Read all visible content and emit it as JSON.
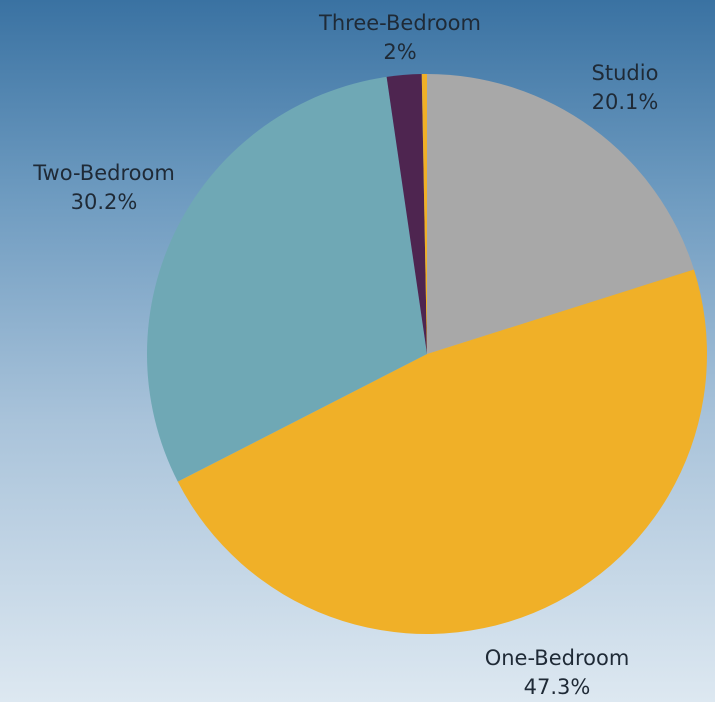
{
  "chart_data": {
    "type": "pie",
    "title": "",
    "slices": [
      {
        "label": "Studio",
        "value_label": "20.1%",
        "value": 20.1,
        "color": "#a8a8a8"
      },
      {
        "label": "One-Bedroom",
        "value_label": "47.3%",
        "value": 47.3,
        "color": "#f0b028"
      },
      {
        "label": "Two-Bedroom",
        "value_label": "30.2%",
        "value": 30.2,
        "color": "#6fa8b5"
      },
      {
        "label": "Three-Bedroom",
        "value_label": "2%",
        "value": 2.0,
        "color": "#4e2550"
      },
      {
        "label": "",
        "value_label": "",
        "value": 0.3,
        "color": "#f0b028"
      }
    ],
    "start_angle_deg": 0,
    "direction": "clockwise",
    "legend": "none"
  }
}
